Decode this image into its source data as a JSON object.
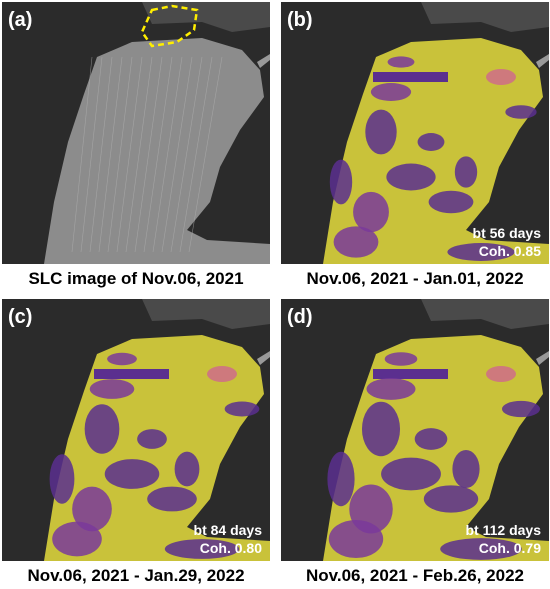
{
  "panels": [
    {
      "label": "(a)",
      "caption": "SLC image of Nov.06, 2021"
    },
    {
      "label": "(b)",
      "caption": "Nov.06, 2021 - Jan.01, 2022",
      "annotation": [
        "bt 56 days",
        "Coh. 0.85"
      ]
    },
    {
      "label": "(c)",
      "caption": "Nov.06, 2021 - Jan.29, 2022",
      "annotation": [
        "bt 84 days",
        "Coh. 0.80"
      ]
    },
    {
      "label": "(d)",
      "caption": "Nov.06, 2021 - Feb.26, 2022",
      "annotation": [
        "bt 112 days",
        "Coh. 0.79"
      ]
    }
  ]
}
